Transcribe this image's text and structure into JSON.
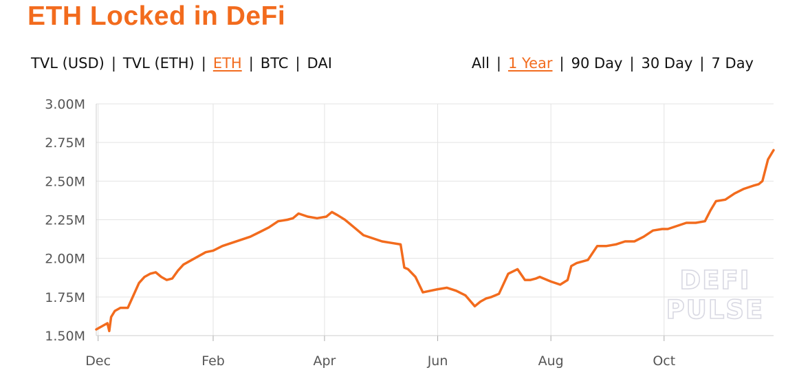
{
  "header": {
    "title": "ETH Locked in DeFi"
  },
  "metric_tabs": [
    {
      "label": "TVL (USD)",
      "active": false
    },
    {
      "label": "TVL (ETH)",
      "active": false
    },
    {
      "label": "ETH",
      "active": true
    },
    {
      "label": "BTC",
      "active": false
    },
    {
      "label": "DAI",
      "active": false
    }
  ],
  "range_tabs": [
    {
      "label": "All",
      "active": false
    },
    {
      "label": "1 Year",
      "active": true
    },
    {
      "label": "90 Day",
      "active": false
    },
    {
      "label": "30 Day",
      "active": false
    },
    {
      "label": "7 Day",
      "active": false
    }
  ],
  "separator": "|",
  "colors": {
    "accent": "#f26b1d",
    "text": "#111111",
    "grid": "#e3e3e3",
    "axis_text": "#555555"
  },
  "watermark": {
    "line1": "DEFI",
    "line2": "PULSE"
  },
  "chart_data": {
    "type": "line",
    "xlabel": "",
    "ylabel": "",
    "y_ticks": [
      "1.50M",
      "1.75M",
      "2.00M",
      "2.25M",
      "2.50M",
      "2.75M",
      "3.00M"
    ],
    "y_tick_values": [
      1500000,
      1750000,
      2000000,
      2250000,
      2500000,
      2750000,
      3000000
    ],
    "ylim": [
      1500000,
      3000000
    ],
    "x_ticks": [
      "Dec",
      "Feb",
      "Apr",
      "Jun",
      "Aug",
      "Oct"
    ],
    "x_tick_dates": [
      "2019-12-01",
      "2020-02-01",
      "2020-04-01",
      "2020-06-01",
      "2020-08-01",
      "2020-10-01"
    ],
    "xlim": [
      "2019-11-30",
      "2020-11-29"
    ],
    "grid": true,
    "series": [
      {
        "color": "#f26b1d",
        "x": [
          "2019-11-30",
          "2019-12-03",
          "2019-12-06",
          "2019-12-07",
          "2019-12-08",
          "2019-12-10",
          "2019-12-13",
          "2019-12-17",
          "2019-12-20",
          "2019-12-23",
          "2019-12-26",
          "2019-12-29",
          "2020-01-01",
          "2020-01-04",
          "2020-01-07",
          "2020-01-10",
          "2020-01-13",
          "2020-01-16",
          "2020-01-19",
          "2020-01-22",
          "2020-01-25",
          "2020-01-28",
          "2020-02-01",
          "2020-02-06",
          "2020-02-11",
          "2020-02-16",
          "2020-02-21",
          "2020-02-26",
          "2020-03-02",
          "2020-03-07",
          "2020-03-12",
          "2020-03-15",
          "2020-03-18",
          "2020-03-23",
          "2020-03-28",
          "2020-04-02",
          "2020-04-05",
          "2020-04-08",
          "2020-04-12",
          "2020-04-17",
          "2020-04-22",
          "2020-04-27",
          "2020-05-02",
          "2020-05-07",
          "2020-05-12",
          "2020-05-14",
          "2020-05-16",
          "2020-05-20",
          "2020-05-24",
          "2020-05-28",
          "2020-06-01",
          "2020-06-06",
          "2020-06-11",
          "2020-06-16",
          "2020-06-21",
          "2020-06-24",
          "2020-06-27",
          "2020-06-30",
          "2020-07-04",
          "2020-07-09",
          "2020-07-14",
          "2020-07-18",
          "2020-07-21",
          "2020-07-24",
          "2020-07-26",
          "2020-08-01",
          "2020-08-06",
          "2020-08-10",
          "2020-08-12",
          "2020-08-15",
          "2020-08-18",
          "2020-08-21",
          "2020-08-26",
          "2020-08-31",
          "2020-09-05",
          "2020-09-10",
          "2020-09-15",
          "2020-09-20",
          "2020-09-25",
          "2020-09-30",
          "2020-10-03",
          "2020-10-08",
          "2020-10-13",
          "2020-10-18",
          "2020-10-23",
          "2020-10-26",
          "2020-10-29",
          "2020-11-03",
          "2020-11-08",
          "2020-11-13",
          "2020-11-18",
          "2020-11-21",
          "2020-11-23",
          "2020-11-26",
          "2020-11-29"
        ],
        "y": [
          1540000,
          1560000,
          1580000,
          1530000,
          1620000,
          1660000,
          1680000,
          1680000,
          1760000,
          1840000,
          1880000,
          1900000,
          1910000,
          1880000,
          1860000,
          1870000,
          1920000,
          1960000,
          1980000,
          2000000,
          2020000,
          2040000,
          2050000,
          2080000,
          2100000,
          2120000,
          2140000,
          2170000,
          2200000,
          2240000,
          2250000,
          2260000,
          2290000,
          2270000,
          2260000,
          2270000,
          2300000,
          2280000,
          2250000,
          2200000,
          2150000,
          2130000,
          2110000,
          2100000,
          2090000,
          1940000,
          1930000,
          1880000,
          1780000,
          1790000,
          1800000,
          1810000,
          1790000,
          1760000,
          1690000,
          1720000,
          1740000,
          1750000,
          1770000,
          1900000,
          1930000,
          1860000,
          1860000,
          1870000,
          1880000,
          1850000,
          1830000,
          1860000,
          1950000,
          1970000,
          1980000,
          1990000,
          2080000,
          2080000,
          2090000,
          2110000,
          2110000,
          2140000,
          2180000,
          2190000,
          2190000,
          2210000,
          2230000,
          2230000,
          2240000,
          2310000,
          2370000,
          2380000,
          2420000,
          2450000,
          2470000,
          2480000,
          2500000,
          2640000,
          2700000
        ]
      }
    ]
  }
}
